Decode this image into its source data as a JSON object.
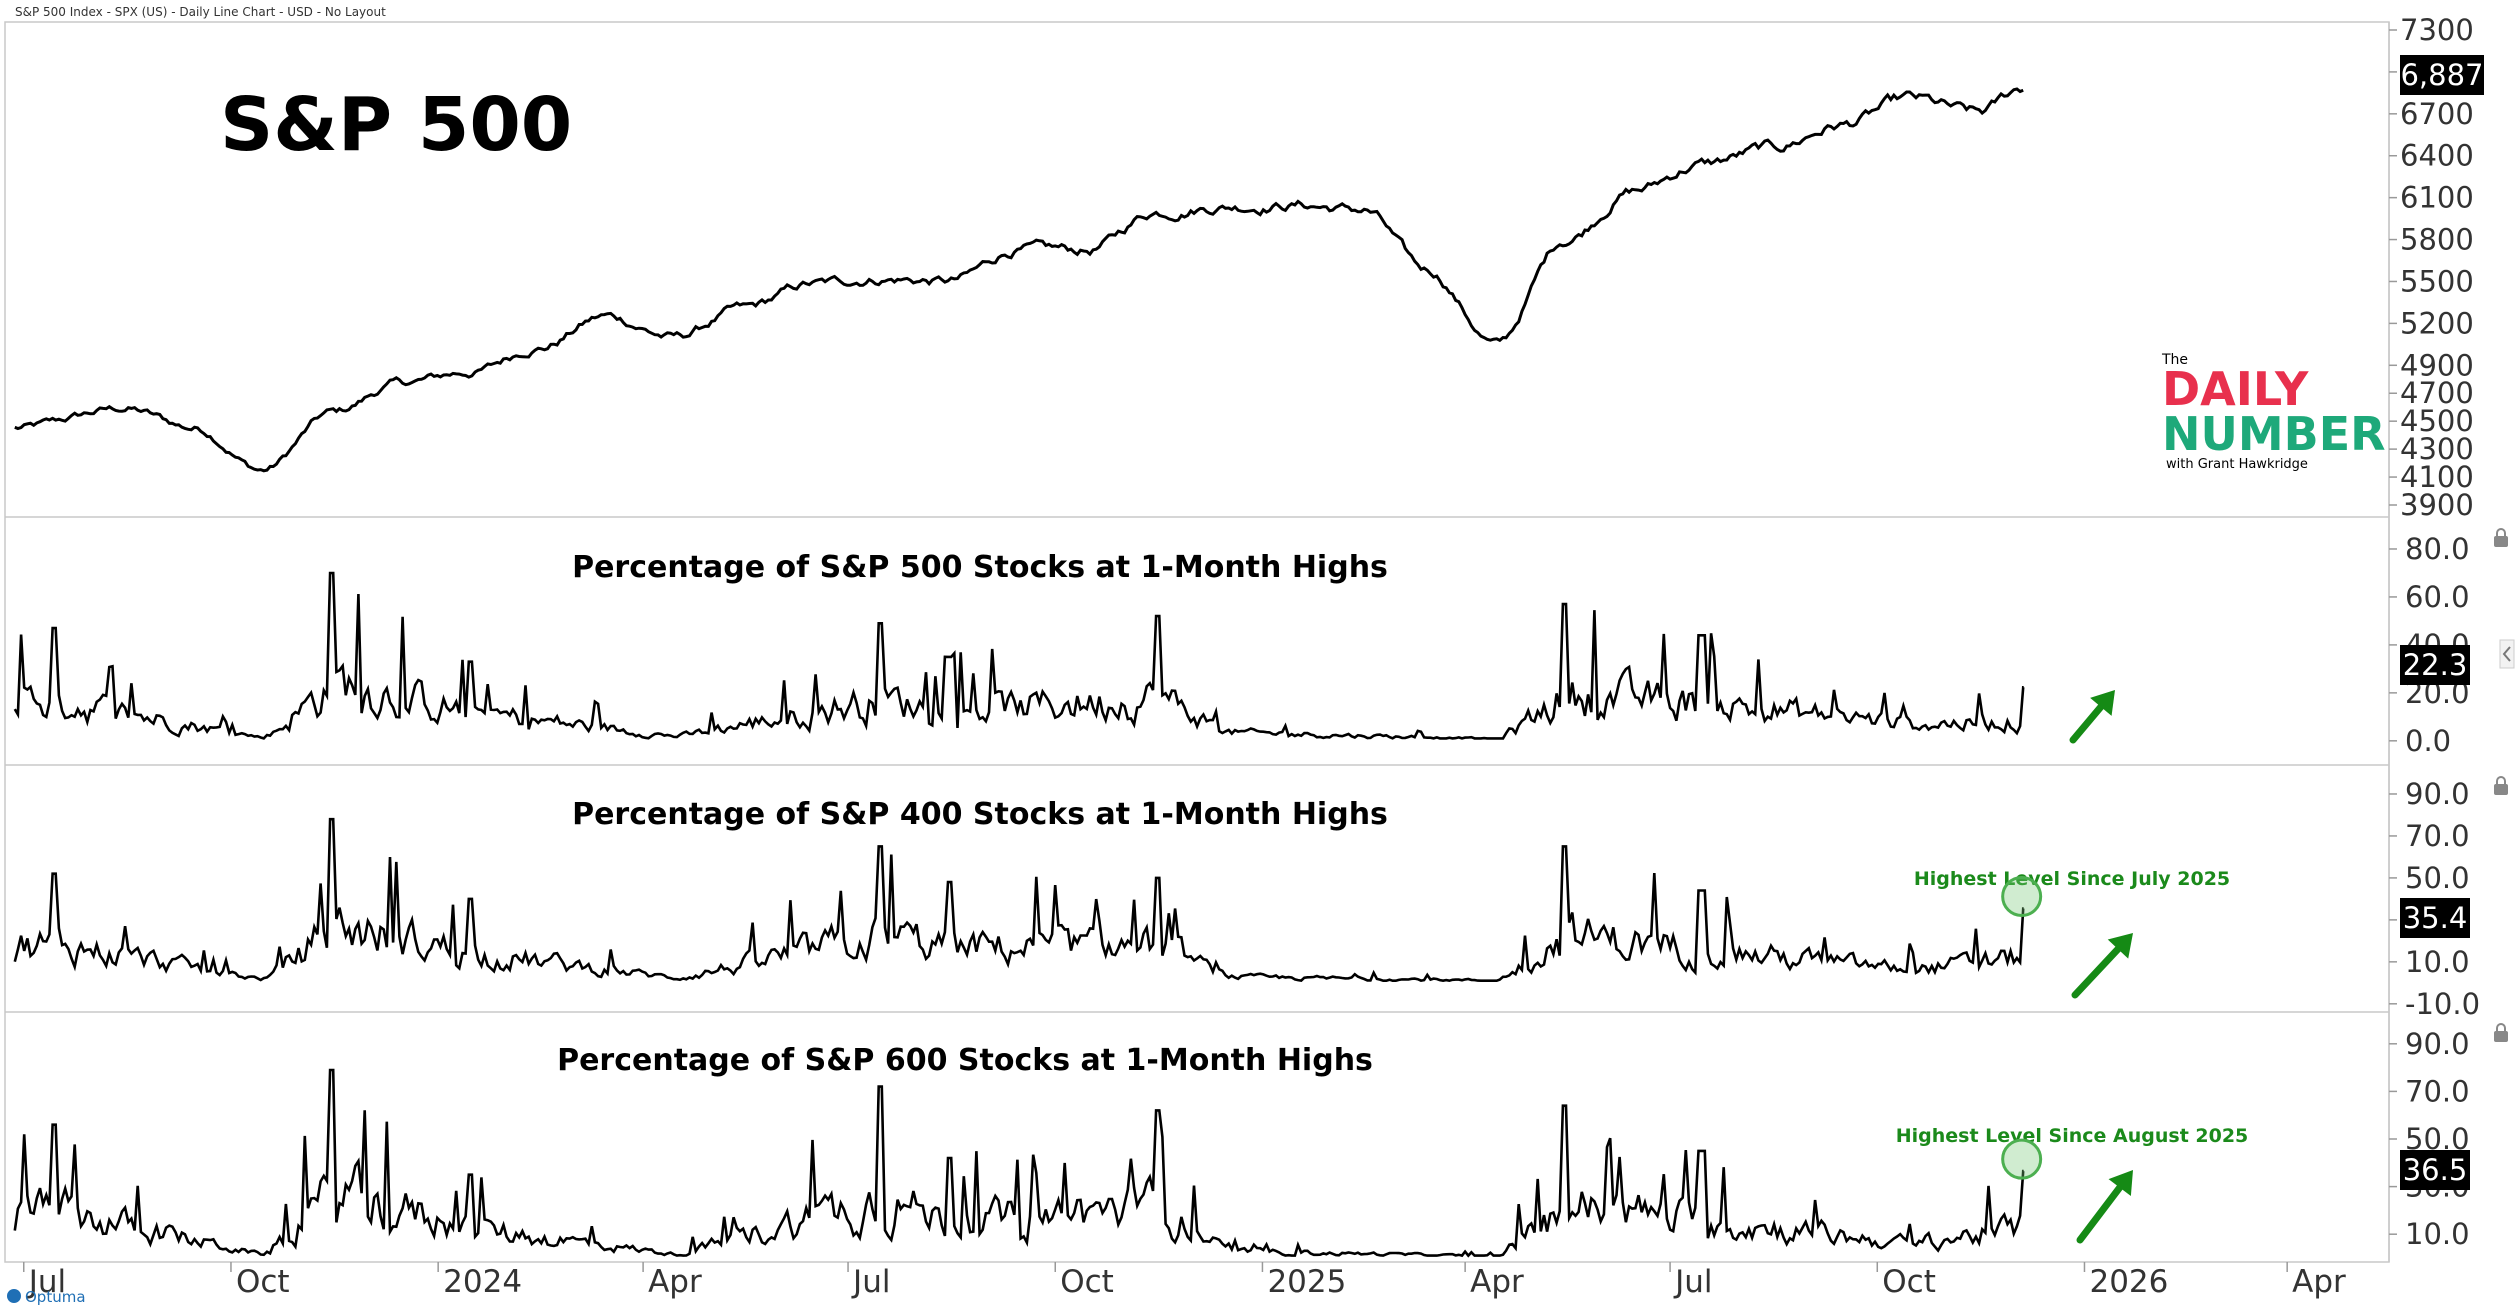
{
  "header": {
    "text": "S&P 500 Index - SPX (US) - Daily Line Chart - USD - No Layout"
  },
  "footer": {
    "brand": "Optuma"
  },
  "logo": {
    "line1": "The",
    "line2": "DAILY",
    "line3": "NUMBER",
    "line4": "with Grant Hawkridge",
    "colors": {
      "daily": "#e8304d",
      "number": "#1ea97a"
    }
  },
  "x_axis": {
    "labels": [
      "Jul",
      "Oct",
      "2024",
      "Apr",
      "Jul",
      "Oct",
      "2025",
      "Apr",
      "Jul",
      "Oct",
      "2026",
      "Apr"
    ]
  },
  "chart_data": [
    {
      "type": "line",
      "title": "S&P 500",
      "y_ticks": [
        "7300",
        "7000",
        "6700",
        "6400",
        "6100",
        "5800",
        "5500",
        "5200",
        "4900",
        "4700",
        "4500",
        "4300",
        "4100",
        "3900"
      ],
      "last_value_label": "6,887",
      "series_color": "#000000",
      "x": [
        "2023-07",
        "2023-08",
        "2023-09",
        "2023-10",
        "2023-11",
        "2023-12",
        "2024-01",
        "2024-02",
        "2024-03",
        "2024-04",
        "2024-05",
        "2024-06",
        "2024-07",
        "2024-08",
        "2024-09",
        "2024-10",
        "2024-11",
        "2024-12",
        "2025-01",
        "2025-02",
        "2025-03",
        "2025-04",
        "2025-05",
        "2025-06",
        "2025-07",
        "2025-08",
        "2025-09",
        "2025-10",
        "2025-11",
        "2025-12"
      ],
      "values": [
        4450,
        4590,
        4450,
        4150,
        4560,
        4770,
        4850,
        5030,
        5250,
        5100,
        5300,
        5480,
        5520,
        5500,
        5730,
        5720,
        6000,
        6040,
        6050,
        6010,
        5580,
        5050,
        5800,
        6150,
        6340,
        6450,
        6620,
        6800,
        6700,
        6887
      ]
    },
    {
      "type": "line",
      "title": "Percentage of S&P 500 Stocks at 1-Month Highs",
      "y_ticks": [
        "80.0",
        "60.0",
        "40.0",
        "20.0",
        "0.0"
      ],
      "last_value_label": "22.3",
      "peaks": [
        {
          "x": "2023-07",
          "value": 47
        },
        {
          "x": "2023-10",
          "value": 3
        },
        {
          "x": "2023-11",
          "value": 70
        },
        {
          "x": "2024-01",
          "value": 33
        },
        {
          "x": "2024-04",
          "value": 5
        },
        {
          "x": "2024-07",
          "value": 49
        },
        {
          "x": "2024-08",
          "value": 35
        },
        {
          "x": "2024-11",
          "value": 52
        },
        {
          "x": "2024-12",
          "value": 10
        },
        {
          "x": "2025-04",
          "value": 2
        },
        {
          "x": "2025-05",
          "value": 57
        },
        {
          "x": "2025-07",
          "value": 44
        },
        {
          "x": "2025-10",
          "value": 20
        },
        {
          "x": "2025-12",
          "value": 22.3
        }
      ]
    },
    {
      "type": "line",
      "title": "Percentage of S&P 400 Stocks at 1-Month Highs",
      "y_ticks": [
        "90.0",
        "70.0",
        "50.0",
        "30.0",
        "10.0",
        "-10.0"
      ],
      "last_value_label": "35.4",
      "annotation": "Highest Level Since July 2025",
      "peaks": [
        {
          "x": "2023-07",
          "value": 52
        },
        {
          "x": "2023-10",
          "value": 4
        },
        {
          "x": "2023-11",
          "value": 78
        },
        {
          "x": "2024-01",
          "value": 40
        },
        {
          "x": "2024-04",
          "value": 6
        },
        {
          "x": "2024-07",
          "value": 65
        },
        {
          "x": "2024-08",
          "value": 48
        },
        {
          "x": "2024-11",
          "value": 50
        },
        {
          "x": "2024-12",
          "value": 8
        },
        {
          "x": "2025-04",
          "value": 3
        },
        {
          "x": "2025-05",
          "value": 65
        },
        {
          "x": "2025-07",
          "value": 44
        },
        {
          "x": "2025-10",
          "value": 18
        },
        {
          "x": "2025-12",
          "value": 35.4
        }
      ]
    },
    {
      "type": "line",
      "title": "Percentage of S&P 600 Stocks at 1-Month Highs",
      "y_ticks": [
        "90.0",
        "70.0",
        "50.0",
        "30.0",
        "10.0"
      ],
      "last_value_label": "36.5",
      "annotation": "Highest Level Since August 2025",
      "peaks": [
        {
          "x": "2023-07",
          "value": 56
        },
        {
          "x": "2023-10",
          "value": 3
        },
        {
          "x": "2023-11",
          "value": 79
        },
        {
          "x": "2024-01",
          "value": 35
        },
        {
          "x": "2024-04",
          "value": 4
        },
        {
          "x": "2024-07",
          "value": 72
        },
        {
          "x": "2024-08",
          "value": 42
        },
        {
          "x": "2024-11",
          "value": 62
        },
        {
          "x": "2024-12",
          "value": 8
        },
        {
          "x": "2025-04",
          "value": 2
        },
        {
          "x": "2025-05",
          "value": 64
        },
        {
          "x": "2025-07",
          "value": 45
        },
        {
          "x": "2025-10",
          "value": 17
        },
        {
          "x": "2025-12",
          "value": 36.5
        }
      ]
    }
  ]
}
